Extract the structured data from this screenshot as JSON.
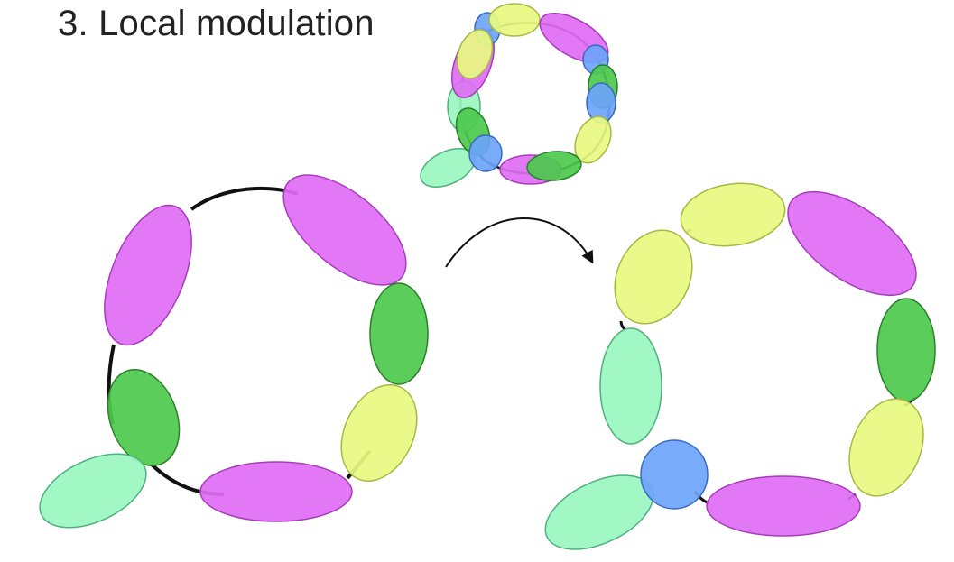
{
  "slide": {
    "title": "3.  Local modulation"
  },
  "colors": {
    "magenta": "#DF6CF5",
    "magenta_stroke": "#A63DB8",
    "lime": "#E8FA80",
    "lime_stroke": "#A8B845",
    "green": "#4CC94C",
    "green_stroke": "#2A7F2A",
    "mint": "#9AF7C0",
    "mint_stroke": "#4FB07E",
    "blue": "#6CA4F8",
    "blue_stroke": "#3A6AC0",
    "chain": "#111111"
  },
  "diagram": {
    "panels": [
      "small-ring-overview",
      "left-ring-before",
      "right-ring-after"
    ],
    "transition": "curved-arrow-right"
  }
}
